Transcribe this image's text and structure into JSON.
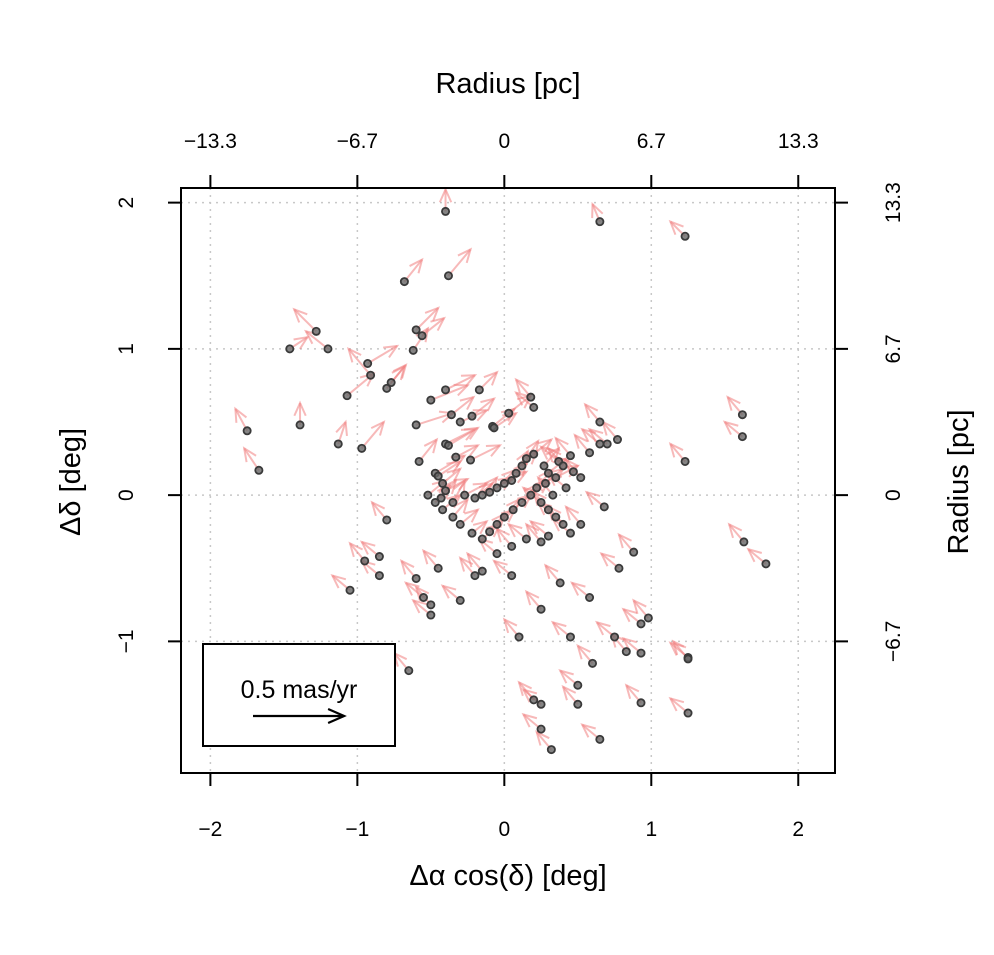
{
  "chart_data": {
    "type": "scatter",
    "xlabel": "Δα cos(δ) [deg]",
    "ylabel": "Δδ [deg]",
    "top_axis_label": "Radius [pc]",
    "right_axis_label": "Radius [pc]",
    "xlim": [
      -2.2,
      2.25
    ],
    "ylim": [
      -1.9,
      2.1
    ],
    "x_ticks": [
      -2,
      -1,
      0,
      1,
      2
    ],
    "y_ticks": [
      -1,
      0,
      1,
      2
    ],
    "x_tick_labels": [
      "−2",
      "−1",
      "0",
      "1",
      "2"
    ],
    "y_tick_labels": [
      "−1",
      "0",
      "1",
      "2"
    ],
    "top_ticks": [
      -2,
      -1,
      0,
      1,
      2
    ],
    "top_tick_labels": [
      "−13.3",
      "−6.7",
      "0",
      "6.7",
      "13.3"
    ],
    "right_ticks": [
      -1,
      0,
      1,
      2
    ],
    "right_tick_labels": [
      "−6.7",
      "0",
      "6.7",
      "13.3"
    ],
    "grid": true,
    "grid_style": "dotted",
    "legend": {
      "placement": "bottom-left",
      "label": "0.5 mas/yr",
      "arrow_length_deg": 0.62
    },
    "colors": {
      "points": "#3a3a3a",
      "arrows": "#f08080",
      "grid": "#c8c8c8"
    },
    "vector_scale_note": "arrow dx, dy are in degrees at the plot scale",
    "points": [
      [
        -0.4,
        1.94,
        0.0,
        0.15
      ],
      [
        0.65,
        1.87,
        -0.05,
        0.12
      ],
      [
        1.23,
        1.77,
        -0.1,
        0.1
      ],
      [
        -0.38,
        1.5,
        0.15,
        0.18
      ],
      [
        -0.68,
        1.46,
        0.12,
        0.15
      ],
      [
        -1.28,
        1.12,
        -0.15,
        0.15
      ],
      [
        -1.46,
        1.0,
        0.12,
        0.08
      ],
      [
        -1.2,
        1.0,
        -0.15,
        0.12
      ],
      [
        -0.6,
        1.13,
        0.15,
        0.15
      ],
      [
        -0.56,
        1.09,
        0.15,
        0.12
      ],
      [
        -0.62,
        0.99,
        0.1,
        0.15
      ],
      [
        -0.93,
        0.9,
        0.2,
        0.12
      ],
      [
        -0.91,
        0.82,
        -0.15,
        0.18
      ],
      [
        -0.8,
        0.73,
        0.12,
        0.15
      ],
      [
        -0.77,
        0.77,
        0.1,
        0.12
      ],
      [
        -0.4,
        0.72,
        0.2,
        0.1
      ],
      [
        -0.5,
        0.65,
        0.25,
        0.1
      ],
      [
        -1.07,
        0.68,
        0.18,
        0.15
      ],
      [
        -1.75,
        0.44,
        -0.08,
        0.15
      ],
      [
        -1.39,
        0.48,
        0.0,
        0.15
      ],
      [
        -1.67,
        0.17,
        -0.1,
        0.15
      ],
      [
        -1.13,
        0.35,
        0.05,
        0.15
      ],
      [
        -0.97,
        0.32,
        0.15,
        0.18
      ],
      [
        -0.6,
        0.48,
        0.25,
        0.08
      ],
      [
        -0.36,
        0.55,
        0.15,
        0.12
      ],
      [
        -0.3,
        0.5,
        0.18,
        0.08
      ],
      [
        -0.22,
        0.54,
        0.15,
        0.12
      ],
      [
        -0.17,
        0.72,
        0.12,
        0.12
      ],
      [
        -0.08,
        0.47,
        0.15,
        0.12
      ],
      [
        -0.07,
        0.46,
        0.15,
        0.1
      ],
      [
        0.03,
        0.56,
        0.15,
        0.12
      ],
      [
        -0.4,
        0.35,
        0.2,
        0.1
      ],
      [
        -0.38,
        0.34,
        0.2,
        0.12
      ],
      [
        -0.33,
        0.26,
        0.15,
        0.08
      ],
      [
        -0.23,
        0.24,
        0.2,
        0.1
      ],
      [
        -0.58,
        0.23,
        0.12,
        0.15
      ],
      [
        -0.47,
        0.15,
        0.2,
        0.12
      ],
      [
        -0.45,
        0.13,
        0.15,
        0.1
      ],
      [
        -0.42,
        0.08,
        0.12,
        0.1
      ],
      [
        -0.4,
        0.03,
        0.15,
        0.08
      ],
      [
        -0.43,
        -0.02,
        0.1,
        0.12
      ],
      [
        -0.35,
        -0.05,
        0.08,
        0.15
      ],
      [
        -0.27,
        0.0,
        0.15,
        0.08
      ],
      [
        -0.2,
        -0.02,
        0.12,
        0.1
      ],
      [
        -0.15,
        0.0,
        0.1,
        0.12
      ],
      [
        -0.1,
        0.02,
        0.15,
        0.1
      ],
      [
        -0.05,
        0.05,
        0.12,
        0.12
      ],
      [
        0.0,
        0.08,
        0.15,
        0.08
      ],
      [
        0.05,
        0.1,
        0.1,
        0.12
      ],
      [
        0.08,
        0.15,
        0.08,
        0.15
      ],
      [
        0.12,
        0.2,
        0.1,
        0.1
      ],
      [
        0.15,
        0.25,
        0.08,
        0.12
      ],
      [
        0.2,
        0.28,
        0.12,
        0.1
      ],
      [
        0.27,
        0.2,
        0.1,
        0.12
      ],
      [
        0.3,
        0.15,
        0.12,
        0.1
      ],
      [
        0.35,
        0.12,
        0.15,
        0.08
      ],
      [
        0.28,
        0.08,
        0.12,
        0.1
      ],
      [
        0.22,
        0.05,
        0.1,
        0.12
      ],
      [
        0.18,
        0.0,
        0.12,
        0.1
      ],
      [
        0.12,
        -0.05,
        0.1,
        0.12
      ],
      [
        0.06,
        -0.1,
        0.12,
        0.1
      ],
      [
        0.0,
        -0.15,
        0.1,
        0.12
      ],
      [
        -0.05,
        -0.2,
        0.12,
        0.1
      ],
      [
        -0.1,
        -0.25,
        0.1,
        0.12
      ],
      [
        -0.15,
        -0.3,
        0.12,
        0.1
      ],
      [
        -0.22,
        -0.26,
        0.1,
        0.08
      ],
      [
        -0.3,
        -0.2,
        0.12,
        0.1
      ],
      [
        -0.35,
        -0.15,
        0.1,
        0.12
      ],
      [
        -0.42,
        -0.1,
        0.12,
        0.1
      ],
      [
        -0.47,
        -0.05,
        0.1,
        0.12
      ],
      [
        -0.52,
        0.0,
        0.12,
        0.1
      ],
      [
        0.45,
        0.27,
        -0.1,
        0.12
      ],
      [
        0.37,
        0.23,
        -0.12,
        0.1
      ],
      [
        0.4,
        0.2,
        -0.1,
        0.12
      ],
      [
        0.47,
        0.16,
        -0.12,
        0.1
      ],
      [
        0.52,
        0.12,
        -0.1,
        0.12
      ],
      [
        0.42,
        0.05,
        -0.12,
        0.1
      ],
      [
        0.33,
        0.0,
        -0.1,
        0.12
      ],
      [
        0.25,
        -0.05,
        -0.12,
        0.1
      ],
      [
        0.3,
        -0.1,
        -0.1,
        0.12
      ],
      [
        0.35,
        -0.15,
        -0.12,
        0.1
      ],
      [
        0.4,
        -0.2,
        -0.1,
        0.12
      ],
      [
        0.3,
        -0.28,
        -0.12,
        0.1
      ],
      [
        0.25,
        -0.32,
        -0.1,
        0.12
      ],
      [
        0.15,
        -0.3,
        -0.12,
        0.1
      ],
      [
        0.05,
        -0.35,
        -0.1,
        0.12
      ],
      [
        -0.05,
        -0.4,
        -0.12,
        0.1
      ],
      [
        0.18,
        0.67,
        -0.1,
        0.12
      ],
      [
        0.2,
        0.6,
        -0.12,
        0.1
      ],
      [
        0.65,
        0.5,
        -0.1,
        0.12
      ],
      [
        0.7,
        0.35,
        -0.12,
        0.1
      ],
      [
        0.77,
        0.38,
        -0.1,
        0.12
      ],
      [
        0.65,
        0.35,
        -0.12,
        0.1
      ],
      [
        0.58,
        0.29,
        -0.1,
        0.12
      ],
      [
        0.68,
        -0.08,
        -0.12,
        0.1
      ],
      [
        0.52,
        -0.2,
        -0.1,
        0.12
      ],
      [
        0.45,
        -0.26,
        -0.12,
        0.1
      ],
      [
        0.88,
        -0.39,
        -0.1,
        0.12
      ],
      [
        0.78,
        -0.5,
        -0.12,
        0.1
      ],
      [
        1.62,
        0.55,
        -0.1,
        0.12
      ],
      [
        1.62,
        0.4,
        -0.12,
        0.1
      ],
      [
        1.23,
        0.23,
        -0.1,
        0.12
      ],
      [
        1.63,
        -0.32,
        -0.1,
        0.12
      ],
      [
        1.78,
        -0.47,
        -0.12,
        0.1
      ],
      [
        -0.8,
        -0.17,
        -0.1,
        0.12
      ],
      [
        -0.85,
        -0.42,
        -0.12,
        0.1
      ],
      [
        -0.95,
        -0.45,
        -0.1,
        0.12
      ],
      [
        -0.85,
        -0.55,
        -0.12,
        0.1
      ],
      [
        -0.6,
        -0.57,
        -0.1,
        0.12
      ],
      [
        -0.55,
        -0.7,
        -0.12,
        0.1
      ],
      [
        -0.5,
        -0.75,
        -0.1,
        0.12
      ],
      [
        -0.5,
        -0.82,
        -0.12,
        0.1
      ],
      [
        -0.45,
        -0.5,
        -0.1,
        0.12
      ],
      [
        -1.05,
        -0.65,
        -0.12,
        0.1
      ],
      [
        -0.2,
        -0.55,
        -0.1,
        0.12
      ],
      [
        -0.3,
        -0.72,
        -0.12,
        0.1
      ],
      [
        -0.15,
        -0.52,
        -0.1,
        0.12
      ],
      [
        0.05,
        -0.55,
        -0.12,
        0.1
      ],
      [
        0.38,
        -0.6,
        -0.1,
        0.12
      ],
      [
        0.58,
        -0.7,
        -0.12,
        0.1
      ],
      [
        0.25,
        -0.78,
        -0.1,
        0.12
      ],
      [
        0.45,
        -0.97,
        -0.12,
        0.1
      ],
      [
        0.1,
        -0.97,
        -0.1,
        0.12
      ],
      [
        0.93,
        -0.88,
        -0.12,
        0.1
      ],
      [
        0.98,
        -0.84,
        -0.1,
        0.12
      ],
      [
        0.75,
        -0.97,
        -0.12,
        0.1
      ],
      [
        0.83,
        -1.07,
        -0.1,
        0.12
      ],
      [
        0.93,
        -1.08,
        -0.12,
        0.1
      ],
      [
        0.6,
        -1.15,
        -0.1,
        0.12
      ],
      [
        0.5,
        -1.3,
        -0.12,
        0.1
      ],
      [
        0.2,
        -1.4,
        -0.1,
        0.12
      ],
      [
        0.25,
        -1.43,
        -0.12,
        0.1
      ],
      [
        0.5,
        -1.43,
        -0.1,
        0.12
      ],
      [
        0.25,
        -1.6,
        -0.12,
        0.1
      ],
      [
        0.32,
        -1.74,
        -0.1,
        0.12
      ],
      [
        0.65,
        -1.67,
        -0.12,
        0.1
      ],
      [
        0.93,
        -1.42,
        -0.1,
        0.12
      ],
      [
        1.25,
        -1.11,
        -0.12,
        0.1
      ],
      [
        1.25,
        -1.12,
        -0.1,
        0.12
      ],
      [
        1.25,
        -1.49,
        -0.12,
        0.1
      ],
      [
        -0.65,
        -1.2,
        -0.1,
        0.12
      ]
    ]
  }
}
